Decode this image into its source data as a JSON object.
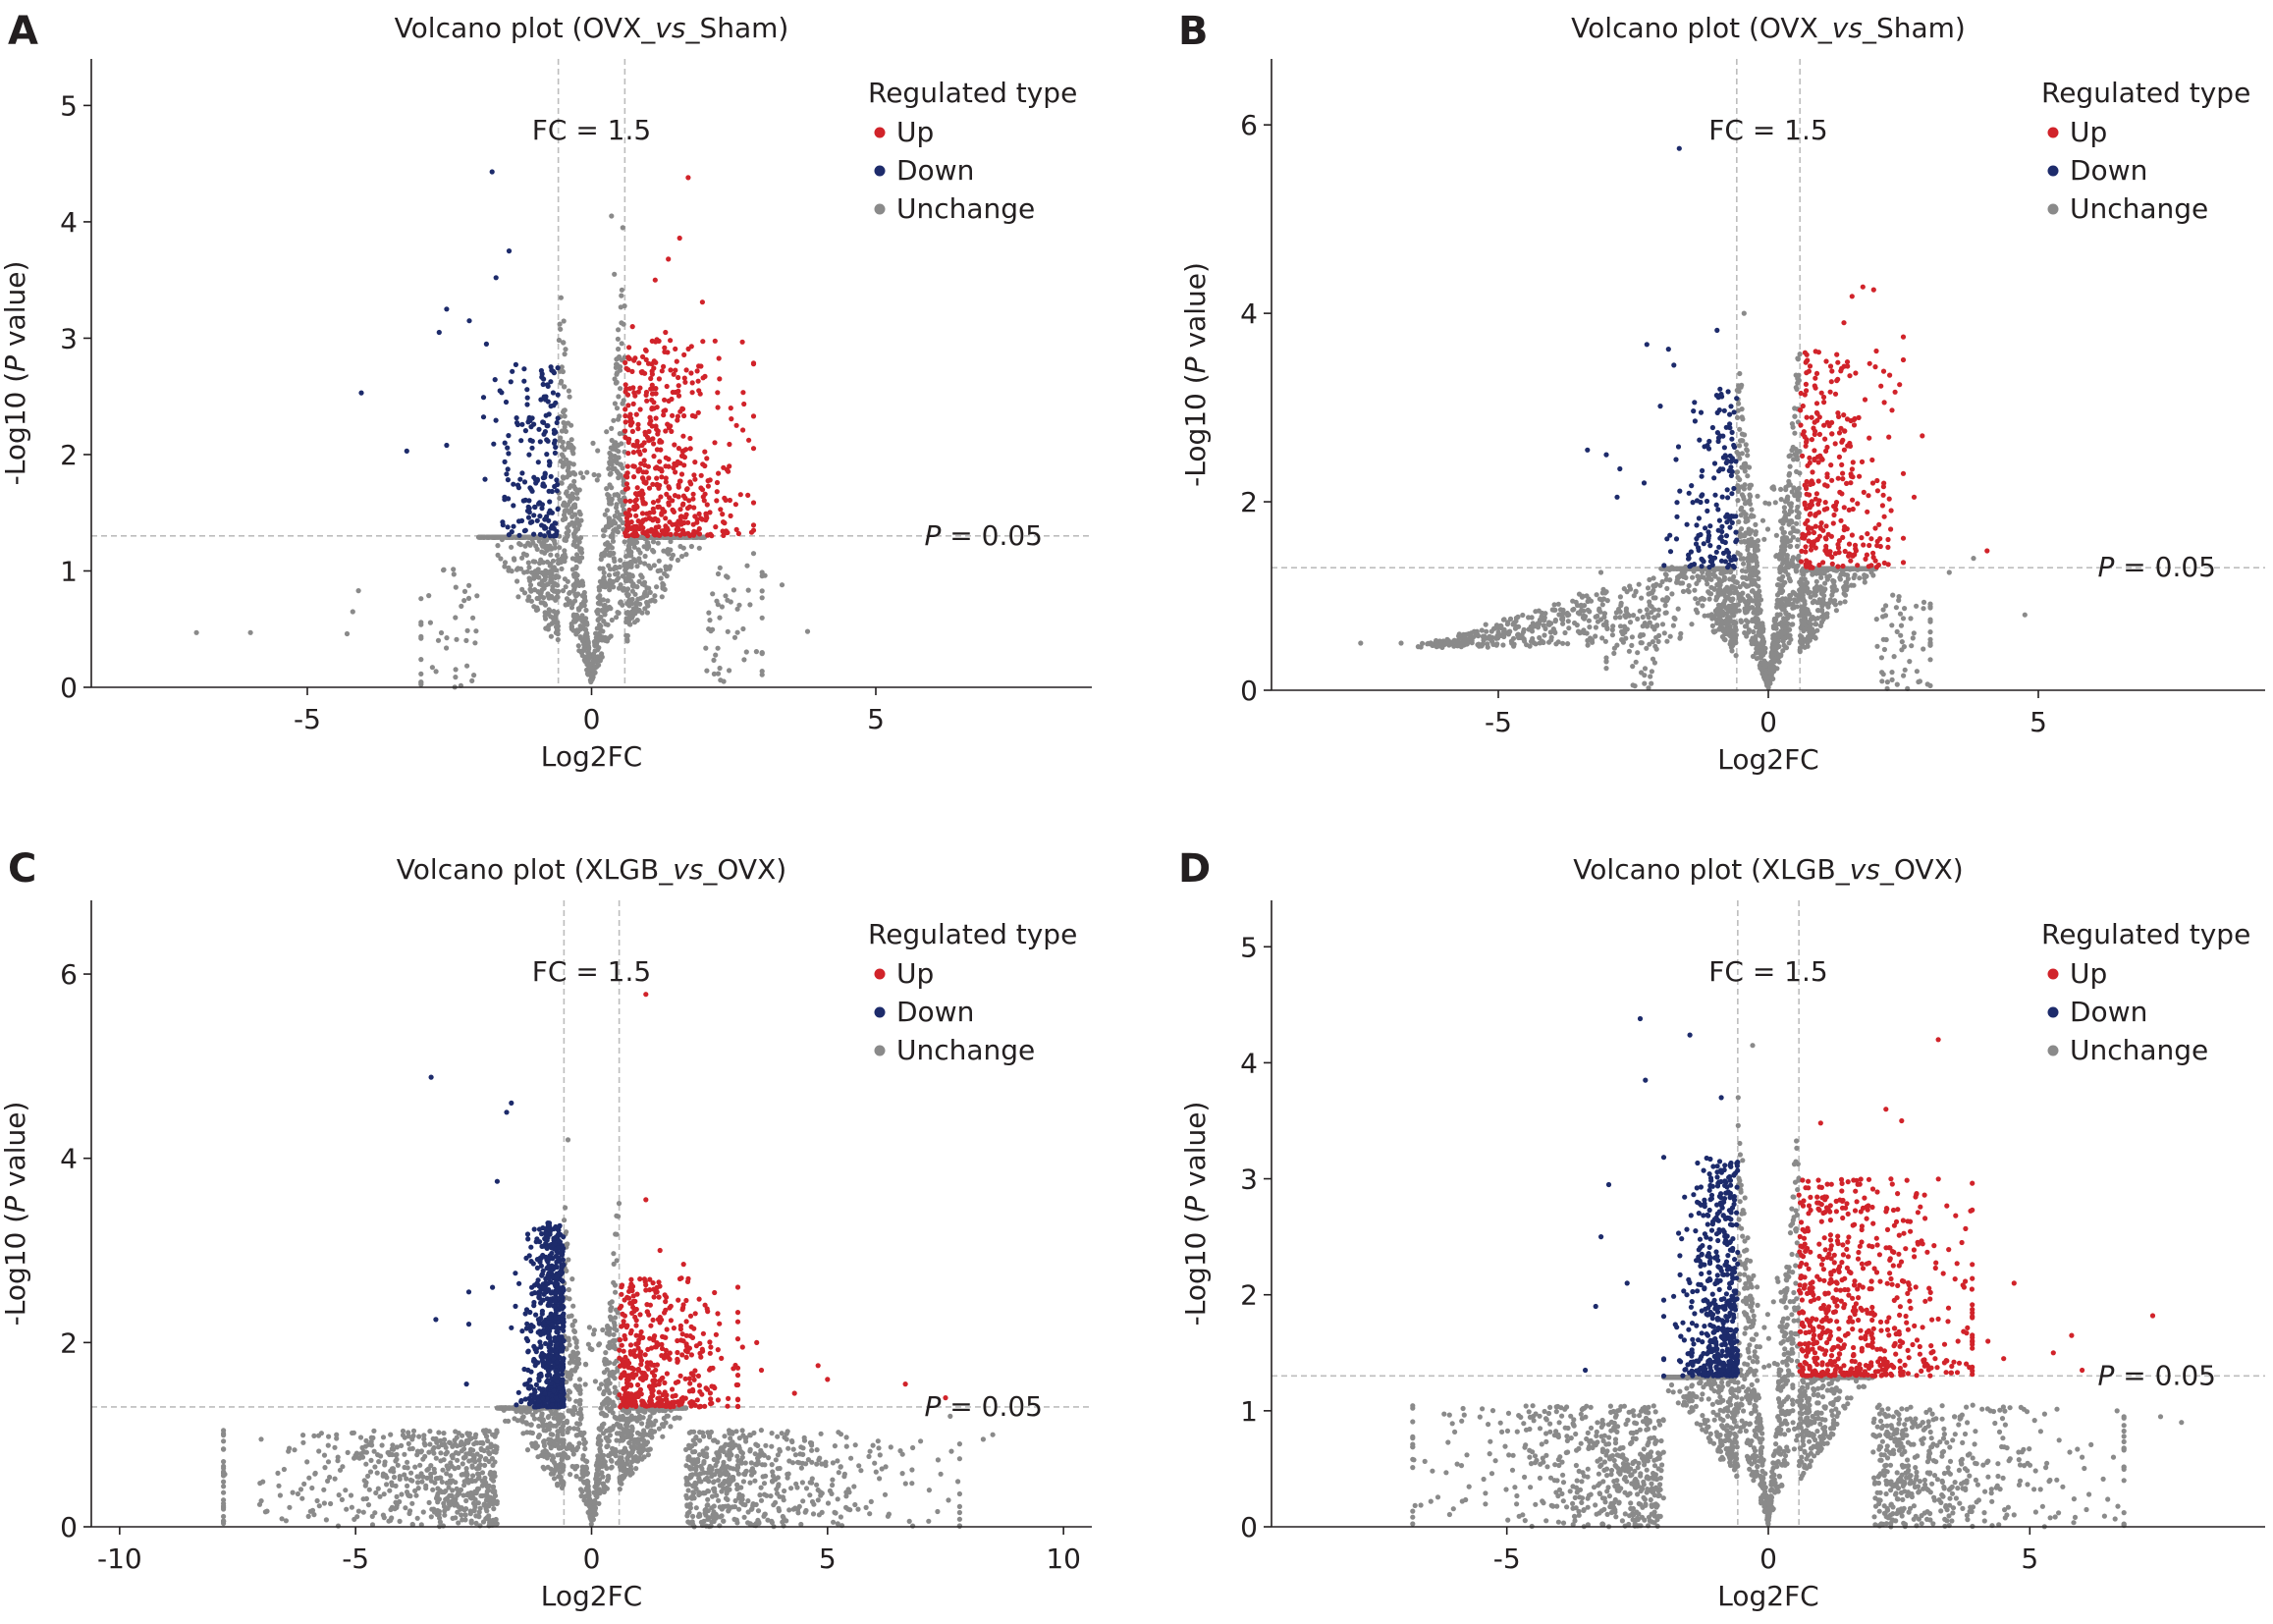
{
  "colors": {
    "up": "#d1232a",
    "down": "#1d2b6b",
    "unchange": "#8a8a8a",
    "axis": "#231f20",
    "threshold_line": "#bdbdbd"
  },
  "chart_data": [
    {
      "panel": "A",
      "type": "scatter",
      "title_pre": "Volcano plot (OVX_",
      "title_ital": "vs",
      "title_post": "_Sham)",
      "xlabel": "Log2FC",
      "ylabel_pre": "-Log10 (",
      "ylabel_ital": "P",
      "ylabel_post": " value)",
      "xlim": [
        -8.8,
        8.8
      ],
      "ylim": [
        0,
        5.4
      ],
      "xticks": [
        -5,
        0,
        5
      ],
      "yticks": [
        0,
        1,
        2,
        3,
        4,
        5
      ],
      "fc_label": "FC = 1.5",
      "fc_cut": 0.585,
      "p_label_ital": "P",
      "p_label_rest": " = 0.05",
      "p_cut": 1.301,
      "legend_title": "Regulated type",
      "legend": [
        "Up",
        "Down",
        "Unchange"
      ],
      "legend_position": "top-right",
      "grid": false,
      "up_points": [
        [
          1.7,
          4.38
        ],
        [
          1.55,
          3.86
        ],
        [
          1.35,
          3.68
        ],
        [
          1.12,
          3.5
        ],
        [
          1.95,
          3.31
        ],
        [
          0.72,
          3.1
        ],
        [
          1.3,
          3.05
        ],
        [
          2.55,
          2.25
        ],
        [
          0.95,
          2.9
        ],
        [
          1.5,
          2.8
        ],
        [
          2.25,
          2.65
        ],
        [
          2.45,
          2.4
        ],
        [
          2.75,
          1.65
        ]
      ],
      "down_points": [
        [
          -1.75,
          4.43
        ],
        [
          -1.45,
          3.75
        ],
        [
          -1.68,
          3.52
        ],
        [
          -2.55,
          3.25
        ],
        [
          -2.68,
          3.05
        ],
        [
          -2.15,
          3.15
        ],
        [
          -1.85,
          2.95
        ],
        [
          -4.05,
          2.53
        ],
        [
          -3.25,
          2.03
        ],
        [
          -2.55,
          2.08
        ]
      ],
      "unchange_points": [
        [
          -6.95,
          0.47
        ],
        [
          -6.0,
          0.47
        ],
        [
          -4.3,
          0.46
        ],
        [
          -4.1,
          0.83
        ],
        [
          -4.2,
          0.65
        ],
        [
          0.35,
          4.05
        ],
        [
          0.55,
          3.95
        ],
        [
          0.4,
          3.55
        ],
        [
          3.35,
          0.88
        ],
        [
          3.8,
          0.48
        ],
        [
          2.85,
          1.15
        ],
        [
          3.05,
          0.96
        ]
      ],
      "clusters": {
        "unchange_n": 1500,
        "unchange_xmax": 3.0,
        "up_n": 480,
        "up_xmax": 2.55,
        "up_ymax": 3.0,
        "down_n": 180,
        "down_xmax": 1.5,
        "down_ymax": 2.8,
        "skew_left": 0
      }
    },
    {
      "panel": "B",
      "type": "scatter",
      "title_pre": "Volcano plot (OVX_",
      "title_ital": "vs",
      "title_post": "_Sham)",
      "xlabel": "Log2FC",
      "ylabel_pre": "-Log10 (",
      "ylabel_ital": "P",
      "ylabel_post": " value)",
      "xlim": [
        -9.2,
        9.2
      ],
      "ylim": [
        0,
        6.7
      ],
      "xticks": [
        -5,
        0,
        5
      ],
      "yticks": [
        0,
        2,
        4,
        6
      ],
      "fc_label": "FC = 1.5",
      "fc_cut": 0.585,
      "p_label_ital": "P",
      "p_label_rest": " = 0.05",
      "p_cut": 1.301,
      "legend_title": "Regulated type",
      "legend": [
        "Up",
        "Down",
        "Unchange"
      ],
      "legend_position": "top-right",
      "grid": false,
      "up_points": [
        [
          1.75,
          4.28
        ],
        [
          1.95,
          4.25
        ],
        [
          1.55,
          4.18
        ],
        [
          2.5,
          3.75
        ],
        [
          1.4,
          3.9
        ],
        [
          2.0,
          3.6
        ],
        [
          2.85,
          2.7
        ],
        [
          4.05,
          1.48
        ],
        [
          2.5,
          2.3
        ],
        [
          2.7,
          2.05
        ]
      ],
      "down_points": [
        [
          -1.65,
          5.75
        ],
        [
          -2.25,
          3.67
        ],
        [
          -1.85,
          3.62
        ],
        [
          -0.95,
          3.82
        ],
        [
          -1.75,
          3.45
        ],
        [
          -3.35,
          2.55
        ],
        [
          -3.0,
          2.5
        ],
        [
          -2.75,
          2.35
        ],
        [
          -2.3,
          2.2
        ],
        [
          -2.8,
          2.05
        ]
      ],
      "unchange_points": [
        [
          -7.55,
          0.5
        ],
        [
          -6.8,
          0.5
        ],
        [
          -6.1,
          0.47
        ],
        [
          -5.5,
          0.55
        ],
        [
          -4.9,
          0.62
        ],
        [
          -4.2,
          0.78
        ],
        [
          -3.8,
          0.85
        ],
        [
          -3.5,
          1.02
        ],
        [
          -3.1,
          1.25
        ],
        [
          -0.45,
          4.0
        ],
        [
          4.75,
          0.8
        ],
        [
          3.8,
          1.4
        ],
        [
          3.35,
          1.25
        ]
      ],
      "clusters": {
        "unchange_n": 1700,
        "unchange_xmax": 3.0,
        "up_n": 300,
        "up_xmax": 2.2,
        "up_ymax": 3.6,
        "down_n": 160,
        "down_xmax": 1.6,
        "down_ymax": 3.2,
        "skew_left": 420
      }
    },
    {
      "panel": "C",
      "type": "scatter",
      "title_pre": "Volcano plot (XLGB_",
      "title_ital": "vs",
      "title_post": "_OVX)",
      "xlabel": "Log2FC",
      "ylabel_pre": "-Log10 (",
      "ylabel_ital": "P",
      "ylabel_post": " value)",
      "xlim": [
        -10.6,
        10.6
      ],
      "ylim": [
        0,
        6.8
      ],
      "xticks": [
        -10,
        -5,
        0,
        5,
        10
      ],
      "yticks": [
        0,
        2,
        4,
        6
      ],
      "fc_label": "FC = 1.5",
      "fc_cut": 0.585,
      "p_label_ital": "P",
      "p_label_rest": " = 0.05",
      "p_cut": 1.301,
      "legend_title": "Regulated type",
      "legend": [
        "Up",
        "Down",
        "Unchange"
      ],
      "legend_position": "top-right",
      "grid": false,
      "up_points": [
        [
          1.15,
          5.78
        ],
        [
          1.15,
          3.55
        ],
        [
          1.45,
          3.0
        ],
        [
          1.95,
          2.85
        ],
        [
          3.5,
          2.0
        ],
        [
          3.2,
          1.95
        ],
        [
          3.6,
          1.7
        ],
        [
          4.8,
          1.75
        ],
        [
          5.0,
          1.6
        ],
        [
          6.65,
          1.55
        ],
        [
          7.5,
          1.4
        ],
        [
          4.3,
          1.45
        ]
      ],
      "down_points": [
        [
          -3.4,
          4.88
        ],
        [
          -1.7,
          4.6
        ],
        [
          -1.8,
          4.5
        ],
        [
          -2.0,
          3.75
        ],
        [
          -3.3,
          2.25
        ],
        [
          -2.6,
          2.2
        ],
        [
          -2.6,
          2.55
        ],
        [
          -2.65,
          1.55
        ],
        [
          -2.1,
          2.6
        ]
      ],
      "unchange_points": [
        [
          -0.5,
          4.2
        ],
        [
          -3.8,
          0.95
        ],
        [
          -3.8,
          0.5
        ],
        [
          -3.0,
          0.5
        ],
        [
          8.3,
          0.95
        ],
        [
          8.5,
          1.0
        ],
        [
          7.8,
          0.9
        ],
        [
          7.6,
          1.2
        ]
      ],
      "clusters": {
        "unchange_n": 2600,
        "unchange_xmax": 7.8,
        "up_n": 420,
        "up_xmax": 2.8,
        "up_ymax": 2.7,
        "down_n": 700,
        "down_xmax": 1.3,
        "down_ymax": 3.3,
        "skew_left": 0
      }
    },
    {
      "panel": "D",
      "type": "scatter",
      "title_pre": "Volcano plot (XLGB_",
      "title_ital": "vs",
      "title_post": "_OVX)",
      "xlabel": "Log2FC",
      "ylabel_pre": "-Log10 (",
      "ylabel_ital": "P",
      "ylabel_post": " value)",
      "xlim": [
        -9.5,
        9.5
      ],
      "ylim": [
        0,
        5.4
      ],
      "xticks": [
        -5,
        0,
        5
      ],
      "yticks": [
        0,
        1,
        2,
        3,
        4,
        5
      ],
      "fc_label": "FC = 1.5",
      "fc_cut": 0.585,
      "p_label_ital": "P",
      "p_label_rest": " = 0.05",
      "p_cut": 1.301,
      "legend_title": "Regulated type",
      "legend": [
        "Up",
        "Down",
        "Unchange"
      ],
      "legend_position": "top-right",
      "grid": false,
      "up_points": [
        [
          3.25,
          4.2
        ],
        [
          1.0,
          3.48
        ],
        [
          2.55,
          3.5
        ],
        [
          2.25,
          3.6
        ],
        [
          3.7,
          2.45
        ],
        [
          4.7,
          2.1
        ],
        [
          5.8,
          1.65
        ],
        [
          7.35,
          1.82
        ],
        [
          5.45,
          1.5
        ],
        [
          4.2,
          1.6
        ],
        [
          4.5,
          1.45
        ],
        [
          6.0,
          1.35
        ]
      ],
      "down_points": [
        [
          -2.45,
          4.38
        ],
        [
          -1.5,
          4.24
        ],
        [
          -2.35,
          3.85
        ],
        [
          -0.9,
          3.7
        ],
        [
          -3.05,
          2.95
        ],
        [
          -3.2,
          2.5
        ],
        [
          -3.3,
          1.9
        ],
        [
          -3.5,
          1.35
        ],
        [
          -2.7,
          2.1
        ]
      ],
      "unchange_points": [
        [
          -4.8,
          0.82
        ],
        [
          7.9,
          0.9
        ],
        [
          7.5,
          0.95
        ],
        [
          6.6,
          0.6
        ],
        [
          6.0,
          0.6
        ],
        [
          -0.3,
          4.15
        ]
      ],
      "clusters": {
        "unchange_n": 2600,
        "unchange_xmax": 6.8,
        "up_n": 620,
        "up_xmax": 3.6,
        "up_ymax": 3.0,
        "down_n": 520,
        "down_xmax": 1.6,
        "down_ymax": 3.2,
        "skew_left": 0
      }
    }
  ]
}
